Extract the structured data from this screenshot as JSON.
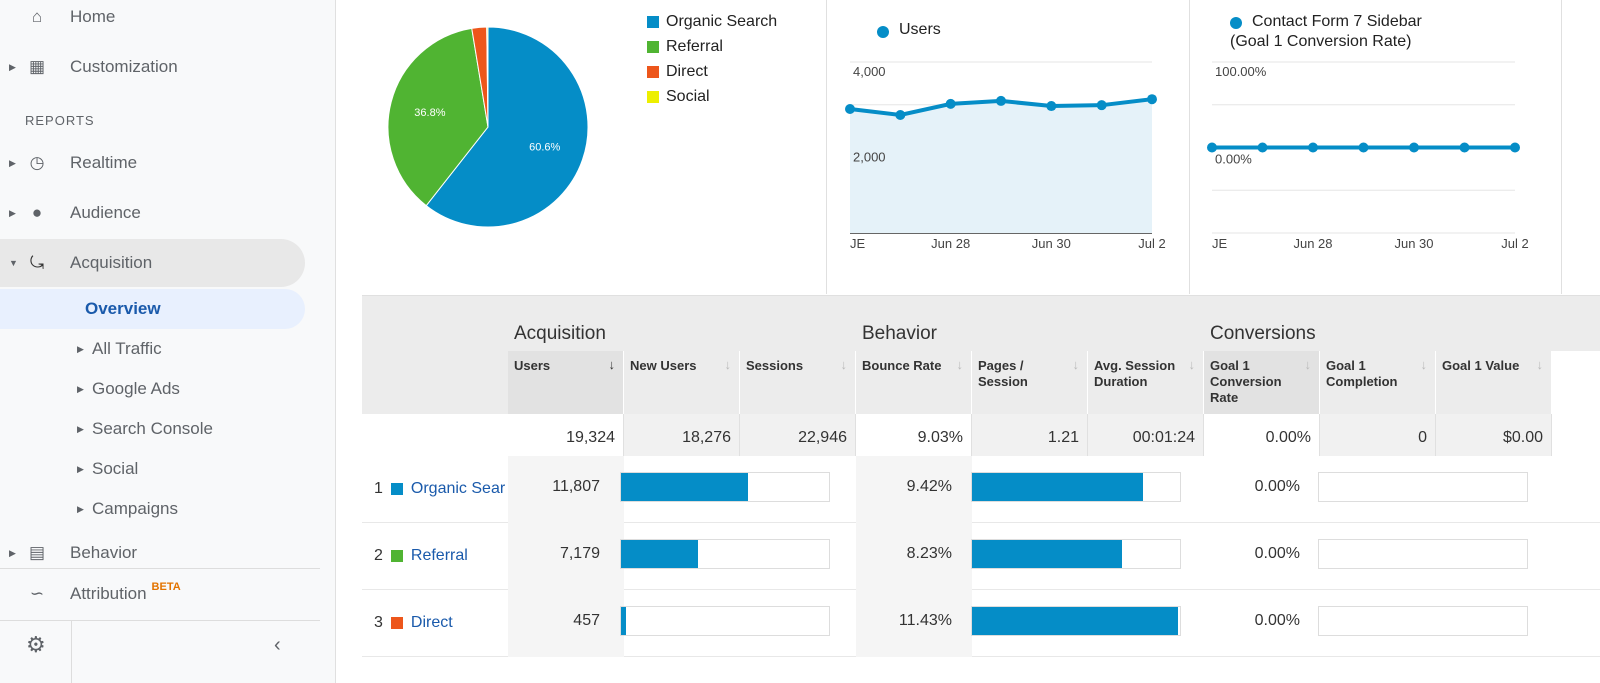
{
  "sidebar": {
    "home": "Home",
    "customization": "Customization",
    "reports_heading": "REPORTS",
    "realtime": "Realtime",
    "audience": "Audience",
    "acquisition": "Acquisition",
    "overview": "Overview",
    "all_traffic": "All Traffic",
    "google_ads": "Google Ads",
    "search_console": "Search Console",
    "social": "Social",
    "campaigns": "Campaigns",
    "behavior": "Behavior",
    "attribution": "Attribution",
    "beta": "BETA"
  },
  "chart_data": [
    {
      "type": "pie",
      "series": [
        {
          "name": "Organic Search",
          "value": 60.6,
          "color": "#058dc7",
          "label": "60.6%"
        },
        {
          "name": "Referral",
          "value": 36.8,
          "color": "#50b432",
          "label": "36.8%"
        },
        {
          "name": "Direct",
          "value": 2.4,
          "color": "#ed561b"
        },
        {
          "name": "Social",
          "value": 0.2,
          "color": "#edef00"
        }
      ]
    },
    {
      "type": "area",
      "series": [
        {
          "name": "Users",
          "values": [
            2900,
            2760,
            3020,
            3090,
            2970,
            2990,
            3130
          ]
        }
      ],
      "x_ticks": [
        "JE",
        "Jun 28",
        "Jun 30",
        "Jul 2"
      ],
      "y_ticks": [
        "4,000",
        "2,000"
      ],
      "ylim": [
        0,
        4000
      ],
      "color": "#058dc7"
    },
    {
      "type": "line",
      "series": [
        {
          "name": "Contact Form 7 Sidebar",
          "name_line2": "(Goal 1 Conversion Rate)",
          "values": [
            0,
            0,
            0,
            0,
            0,
            0,
            0
          ]
        }
      ],
      "x_ticks": [
        "JE",
        "Jun 28",
        "Jun 30",
        "Jul 2"
      ],
      "y_ticks": [
        "100.00%",
        "0.00%"
      ],
      "ylim": [
        -100,
        100
      ],
      "color": "#058dc7"
    }
  ],
  "table": {
    "groups": {
      "acquisition": "Acquisition",
      "behavior": "Behavior",
      "conversions": "Conversions"
    },
    "headers": [
      "Users",
      "New Users",
      "Sessions",
      "Bounce Rate",
      "Pages / Session",
      "Avg. Session Duration",
      "Goal 1 Conversion Rate",
      "Goal 1 Completion",
      "Goal 1 Value"
    ],
    "totals": [
      "19,324",
      "18,276",
      "22,946",
      "9.03%",
      "1.21",
      "00:01:24",
      "0.00%",
      "0",
      "$0.00"
    ],
    "rows": [
      {
        "rank": "1",
        "name": "Organic Sear",
        "color": "#058dc7",
        "users": "11,807",
        "users_share": 0.61,
        "bounce": "9.42%",
        "bounce_share": 0.82,
        "conv": "0.00%",
        "conv_share": 0
      },
      {
        "rank": "2",
        "name": "Referral",
        "color": "#50b432",
        "users": "7,179",
        "users_share": 0.37,
        "bounce": "8.23%",
        "bounce_share": 0.72,
        "conv": "0.00%",
        "conv_share": 0
      },
      {
        "rank": "3",
        "name": "Direct",
        "color": "#ed561b",
        "users": "457",
        "users_share": 0.024,
        "bounce": "11.43%",
        "bounce_share": 0.99,
        "conv": "0.00%",
        "conv_share": 0
      }
    ]
  }
}
